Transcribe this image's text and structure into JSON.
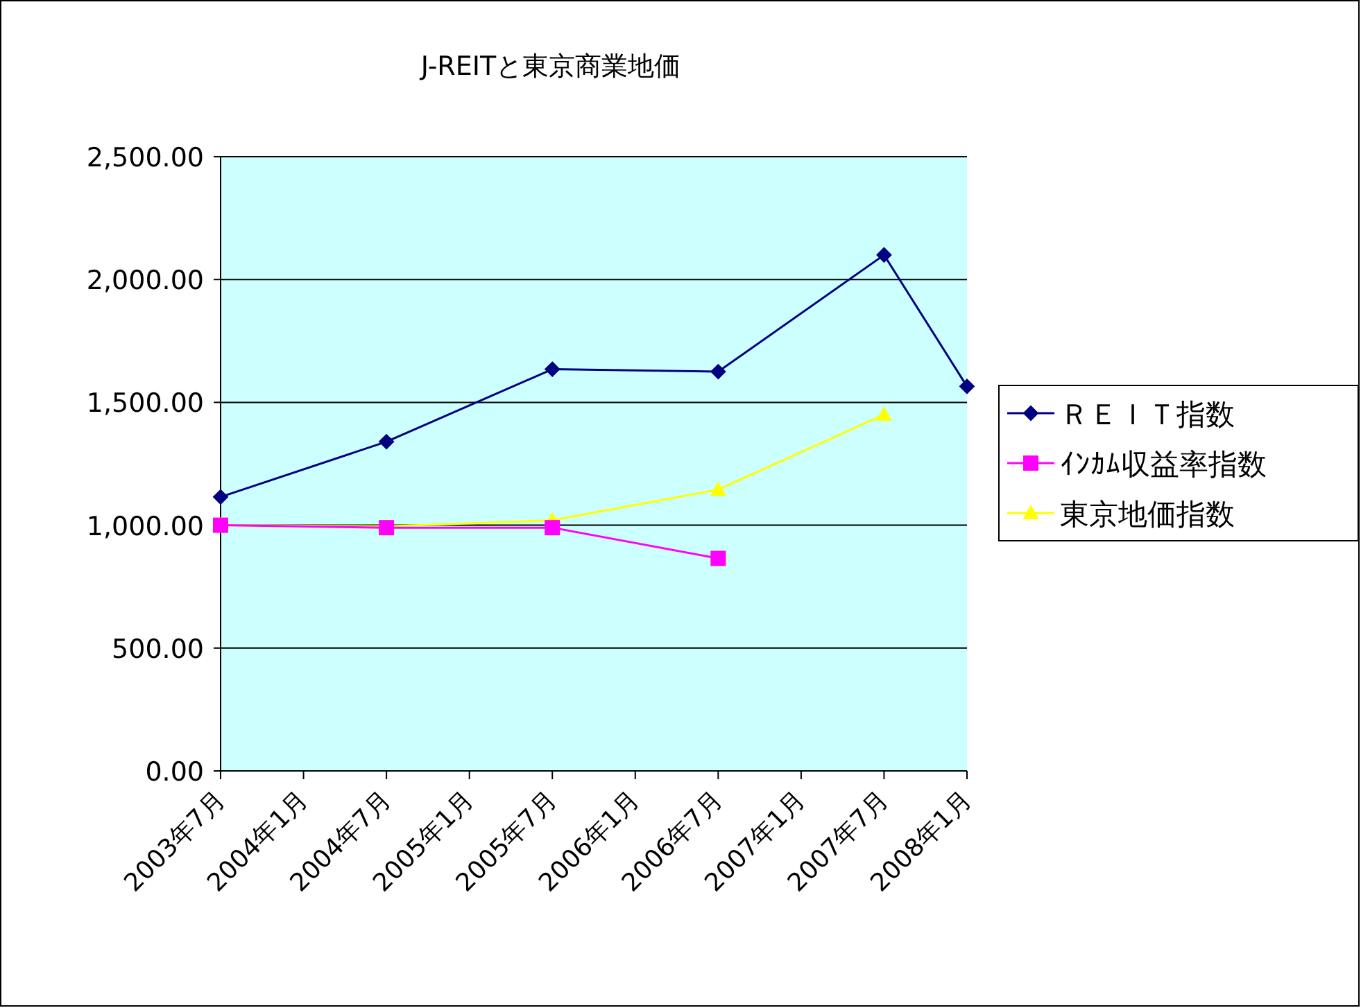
{
  "chart_data": {
    "type": "line",
    "title": "J-REITと東京商業地価",
    "categories": [
      "2003年7月",
      "2004年1月",
      "2004年7月",
      "2005年1月",
      "2005年7月",
      "2006年1月",
      "2006年7月",
      "2007年1月",
      "2007年7月",
      "2008年1月"
    ],
    "series": [
      {
        "name": "ＲＥＩＴ指数",
        "color": "#000080",
        "marker": "diamond",
        "values": [
          1115,
          null,
          1340,
          null,
          1635,
          null,
          1625,
          null,
          2100,
          1565
        ]
      },
      {
        "name": "ｲﾝｶﾑ収益率指数",
        "color": "#ff00ff",
        "marker": "square",
        "values": [
          1000,
          null,
          990,
          null,
          990,
          null,
          865,
          null,
          null,
          null
        ]
      },
      {
        "name": "東京地価指数",
        "color": "#ffff00",
        "marker": "triangle",
        "values": [
          1000,
          null,
          995,
          null,
          1020,
          null,
          1145,
          null,
          1450,
          null
        ]
      }
    ],
    "ylim": [
      0,
      2500
    ],
    "yticks": [
      {
        "value": 0,
        "label": "0.00"
      },
      {
        "value": 500,
        "label": "500.00"
      },
      {
        "value": 1000,
        "label": "1,000.00"
      },
      {
        "value": 1500,
        "label": "1,500.00"
      },
      {
        "value": 2000,
        "label": "2,000.00"
      },
      {
        "value": 2500,
        "label": "2,500.00"
      }
    ],
    "grid": "y",
    "legend": "right",
    "line_style": "solid"
  }
}
